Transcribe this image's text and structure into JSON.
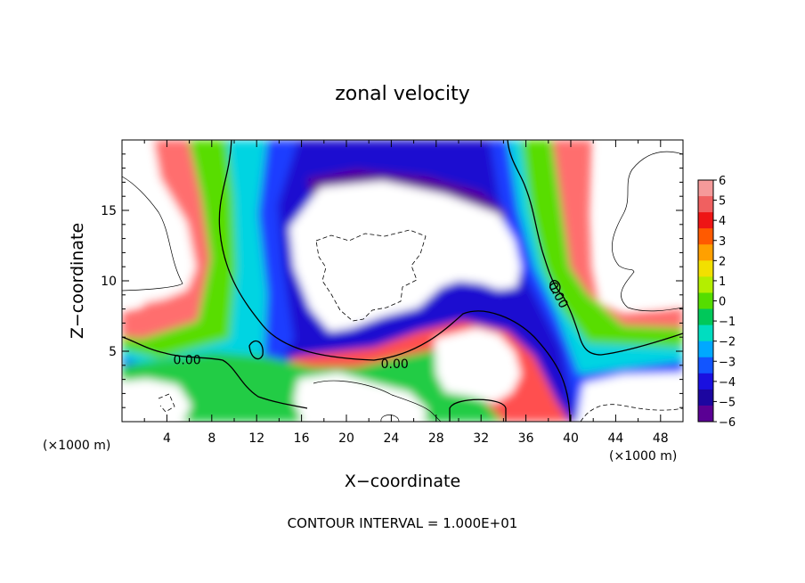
{
  "chart_data": {
    "type": "heatmap",
    "title": "zonal velocity",
    "xlabel": "X−coordinate",
    "ylabel": "Z−coordinate",
    "x_unit": "(×1000 m)",
    "y_unit": "(×1000 m)",
    "footer": "CONTOUR INTERVAL = 1.000E+01",
    "xlim": [
      0,
      50
    ],
    "ylim": [
      0,
      20
    ],
    "x_ticks": [
      4,
      8,
      12,
      16,
      20,
      24,
      28,
      32,
      36,
      40,
      44,
      48
    ],
    "y_ticks": [
      5,
      10,
      15
    ],
    "colorbar": {
      "min": -6,
      "max": 6,
      "ticks": [
        6,
        5,
        4,
        3,
        2,
        1,
        0,
        -1,
        -2,
        -3,
        -4,
        -5,
        -6
      ],
      "tick_labels": [
        "6",
        "5",
        "4",
        "3",
        "2",
        "1",
        "0",
        "−1",
        "−2",
        "−3",
        "−4",
        "−5",
        "−6"
      ],
      "colors": [
        "#f59a9a",
        "#f06060",
        "#ee1515",
        "#ff5a00",
        "#ffa000",
        "#f2e000",
        "#b4ee00",
        "#55dd00",
        "#00c85a",
        "#00ddc0",
        "#00a8ff",
        "#1255ff",
        "#1a10e0",
        "#1c06a0",
        "#5a0094"
      ]
    },
    "contour_labels": [
      {
        "x": 5.8,
        "z": 4.4,
        "text": "0.00"
      },
      {
        "x": 24.3,
        "z": 4.1,
        "text": "0.00"
      },
      {
        "x": 38.9,
        "z": 9.0,
        "text": "0.00"
      }
    ]
  }
}
